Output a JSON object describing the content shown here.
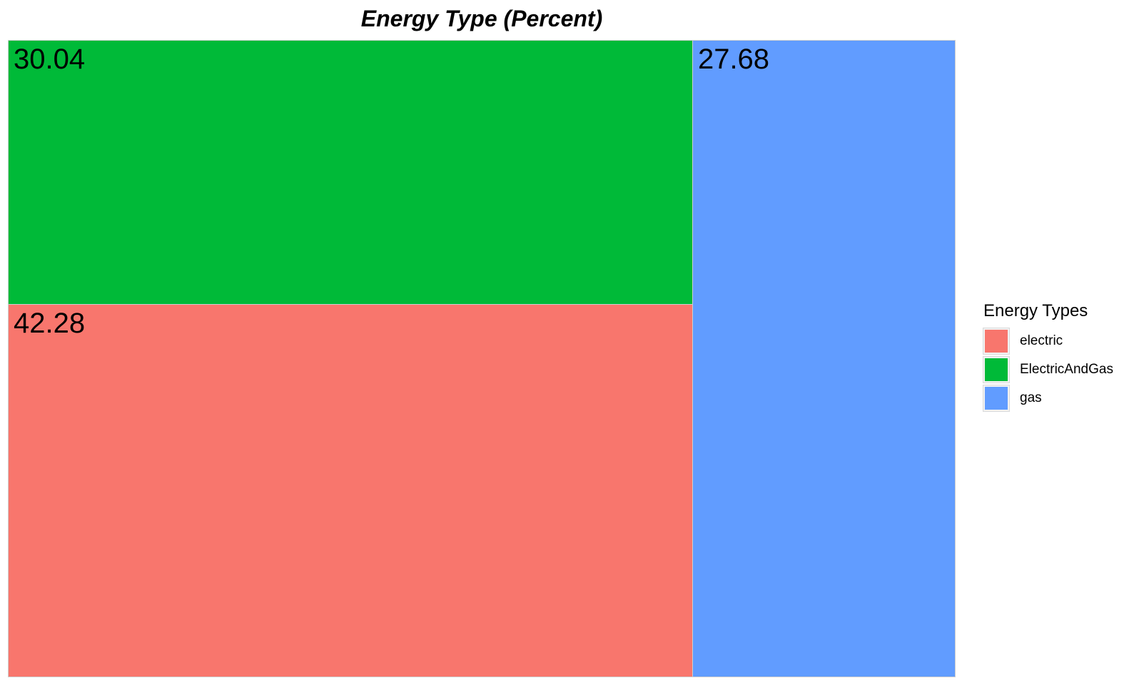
{
  "chart_data": {
    "type": "treemap",
    "title": "Energy Type (Percent)",
    "legend_title": "Energy Types",
    "legend_position": "right",
    "categories": [
      "electric",
      "ElectricAndGas",
      "gas"
    ],
    "values": [
      42.28,
      30.04,
      27.68
    ],
    "value_labels": [
      "42.28",
      "30.04",
      "27.68"
    ],
    "colors": {
      "electric": "#F8766D",
      "ElectricAndGas": "#00BA38",
      "gas": "#619CFF"
    }
  }
}
